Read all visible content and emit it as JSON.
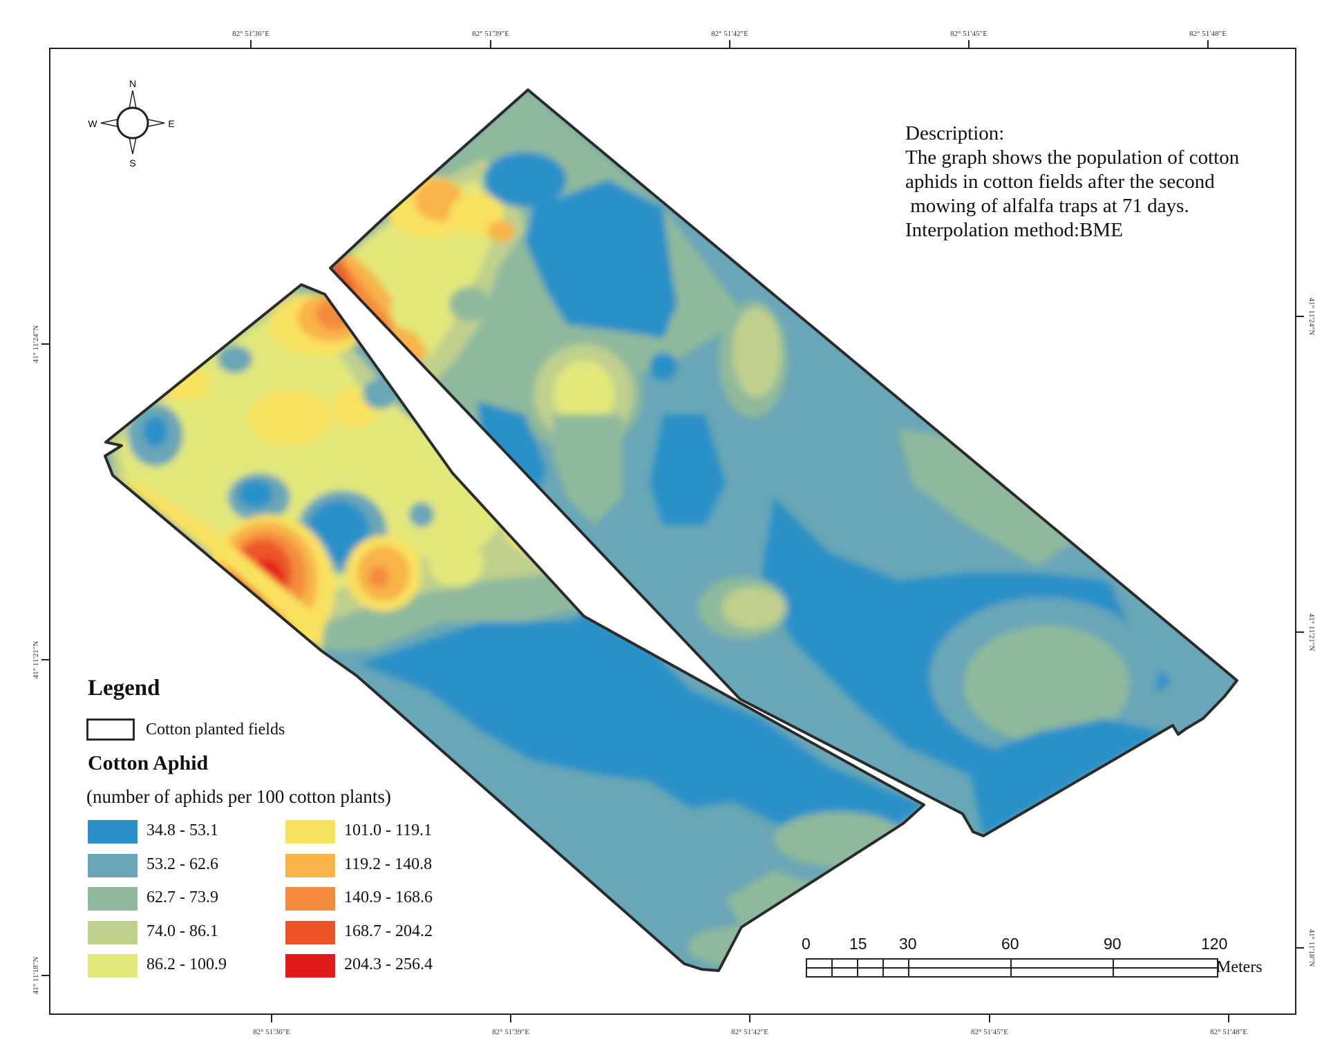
{
  "top_ticks": [
    "82° 51′36″E",
    "82° 51′39″E",
    "82° 51′42″E",
    "82° 51′45″E",
    "82° 51′48″E"
  ],
  "bottom_ticks": [
    "82° 51′36″E",
    "82° 51′39″E",
    "82° 51′42″E",
    "82° 51′45″E",
    "82° 51′48″E"
  ],
  "left_ticks": [
    "41° 11′24″N",
    "41° 11′21″N",
    "41° 11′18″N"
  ],
  "right_ticks": [
    "41° 11′24″N",
    "41° 11′21″N",
    "41° 11′18″N"
  ],
  "compass": {
    "n": "N",
    "s": "S",
    "e": "E",
    "w": "W"
  },
  "description": {
    "heading": "Description:",
    "line1": "The graph shows the population of cotton",
    "line2": "aphids in cotton fields after the second",
    "line3": " mowing of alfalfa traps at 71 days.",
    "line4": "Interpolation method:BME"
  },
  "legend": {
    "title": "Legend",
    "field_label": "Cotton planted fields",
    "aphid_title": "Cotton Aphid",
    "aphid_subtitle": "(number of aphids per 100 cotton plants)",
    "classes": [
      {
        "label": "34.8 - 53.1",
        "color": "#2b90c8"
      },
      {
        "label": "53.2 - 62.6",
        "color": "#69a6b7"
      },
      {
        "label": "62.7 - 73.9",
        "color": "#8fb99c"
      },
      {
        "label": "74.0 - 86.1",
        "color": "#bfd08d"
      },
      {
        "label": "86.2 - 100.9",
        "color": "#e2e77a"
      },
      {
        "label": "101.0 - 119.1",
        "color": "#f9e160"
      },
      {
        "label": "119.2 - 140.8",
        "color": "#f8b349"
      },
      {
        "label": "140.9 - 168.6",
        "color": "#f48a3c"
      },
      {
        "label": "168.7 - 204.2",
        "color": "#ec5426"
      },
      {
        "label": "204.3 - 256.4",
        "color": "#e31a1c"
      }
    ]
  },
  "scale_bar": {
    "labels": [
      "0",
      "15",
      "30",
      "60",
      "90",
      "120"
    ],
    "unit": "Meters"
  }
}
